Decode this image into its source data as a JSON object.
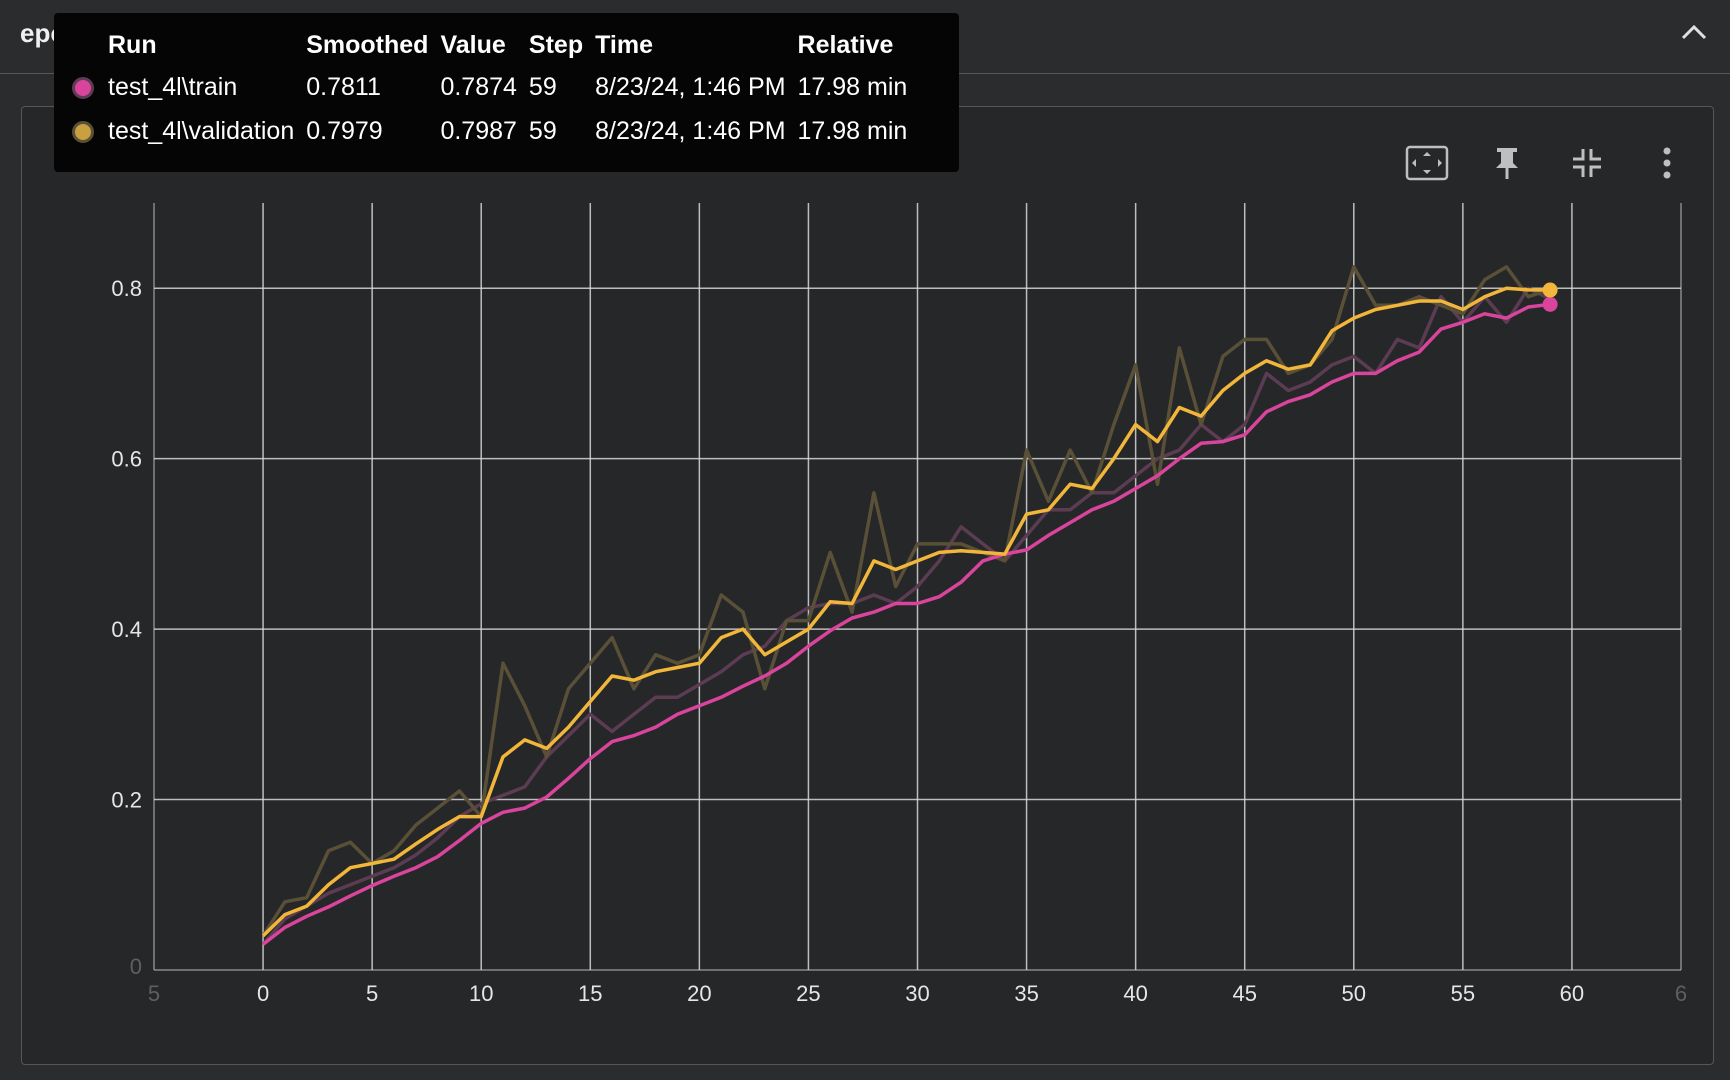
{
  "header": {
    "title": "epoch_accuracy"
  },
  "card": {
    "title": "epoch_accuracy"
  },
  "colors": {
    "train": "#d9449c",
    "train_raw": "#5c3c52",
    "validation": "#f2b63a",
    "validation_raw": "#5a5038",
    "grid": "#d8d8d8"
  },
  "icons": {
    "collapse": "chevron-up-icon",
    "fit": "fit-domain-icon",
    "pin": "pin-icon",
    "minimize": "collapse-arrows-icon",
    "menu": "more-vert-icon"
  },
  "tooltip": {
    "headers": {
      "run": "Run",
      "smoothed": "Smoothed",
      "value": "Value",
      "step": "Step",
      "time": "Time",
      "relative": "Relative"
    },
    "rows": [
      {
        "run": "test_4l\\train",
        "smoothed": "0.7811",
        "value": "0.7874",
        "step": "59",
        "time": "8/23/24, 1:46 PM",
        "relative": "17.98 min",
        "color": "#d9449c",
        "border": "#5c3c52"
      },
      {
        "run": "test_4l\\validation",
        "smoothed": "0.7979",
        "value": "0.7987",
        "step": "59",
        "time": "8/23/24, 1:46 PM",
        "relative": "17.98 min",
        "color": "#c9a040",
        "border": "#5a5038"
      }
    ]
  },
  "chart_data": {
    "type": "line",
    "title": "epoch_accuracy",
    "xlabel": "",
    "ylabel": "",
    "xlim": [
      -5,
      65
    ],
    "ylim": [
      0,
      0.9
    ],
    "x_ticks": [
      "0",
      "5",
      "10",
      "15",
      "20",
      "25",
      "30",
      "35",
      "40",
      "45",
      "50",
      "55",
      "60"
    ],
    "x_edge_ticks": [
      "5",
      "6"
    ],
    "y_ticks": [
      "0.2",
      "0.4",
      "0.6",
      "0.8"
    ],
    "y_edge_tick": "0",
    "grid": true,
    "series": [
      {
        "name": "test_4l\\train",
        "raw": [
          0.03,
          0.06,
          0.075,
          0.09,
          0.1,
          0.11,
          0.12,
          0.135,
          0.155,
          0.18,
          0.195,
          0.205,
          0.215,
          0.25,
          0.275,
          0.3,
          0.28,
          0.3,
          0.32,
          0.32,
          0.335,
          0.35,
          0.37,
          0.38,
          0.41,
          0.425,
          0.43,
          0.43,
          0.44,
          0.43,
          0.45,
          0.48,
          0.52,
          0.5,
          0.48,
          0.51,
          0.54,
          0.54,
          0.56,
          0.56,
          0.58,
          0.6,
          0.61,
          0.64,
          0.62,
          0.64,
          0.7,
          0.68,
          0.69,
          0.71,
          0.72,
          0.7,
          0.74,
          0.73,
          0.79,
          0.76,
          0.79,
          0.76,
          0.8,
          0.7874
        ],
        "smoothed": [
          0.03,
          0.05,
          0.063,
          0.074,
          0.087,
          0.099,
          0.11,
          0.12,
          0.133,
          0.152,
          0.172,
          0.185,
          0.19,
          0.203,
          0.225,
          0.248,
          0.268,
          0.275,
          0.285,
          0.3,
          0.31,
          0.32,
          0.333,
          0.345,
          0.36,
          0.38,
          0.398,
          0.413,
          0.42,
          0.43,
          0.43,
          0.438,
          0.455,
          0.48,
          0.488,
          0.493,
          0.51,
          0.525,
          0.54,
          0.55,
          0.565,
          0.58,
          0.6,
          0.618,
          0.62,
          0.628,
          0.655,
          0.667,
          0.675,
          0.69,
          0.7,
          0.7,
          0.715,
          0.725,
          0.752,
          0.76,
          0.77,
          0.765,
          0.778,
          0.7811
        ]
      },
      {
        "name": "test_4l\\validation",
        "raw": [
          0.04,
          0.08,
          0.085,
          0.14,
          0.15,
          0.125,
          0.14,
          0.17,
          0.19,
          0.21,
          0.18,
          0.36,
          0.31,
          0.25,
          0.33,
          0.36,
          0.39,
          0.33,
          0.37,
          0.36,
          0.37,
          0.44,
          0.42,
          0.33,
          0.41,
          0.41,
          0.49,
          0.42,
          0.56,
          0.45,
          0.5,
          0.5,
          0.5,
          0.49,
          0.48,
          0.61,
          0.55,
          0.61,
          0.56,
          0.64,
          0.71,
          0.57,
          0.73,
          0.64,
          0.72,
          0.74,
          0.74,
          0.7,
          0.71,
          0.74,
          0.825,
          0.78,
          0.78,
          0.79,
          0.78,
          0.77,
          0.81,
          0.825,
          0.79,
          0.7987
        ],
        "smoothed": [
          0.04,
          0.065,
          0.075,
          0.1,
          0.12,
          0.125,
          0.13,
          0.148,
          0.165,
          0.18,
          0.18,
          0.25,
          0.27,
          0.26,
          0.285,
          0.315,
          0.345,
          0.34,
          0.35,
          0.355,
          0.36,
          0.39,
          0.4,
          0.37,
          0.385,
          0.4,
          0.432,
          0.43,
          0.48,
          0.47,
          0.48,
          0.49,
          0.492,
          0.49,
          0.488,
          0.535,
          0.54,
          0.57,
          0.565,
          0.6,
          0.64,
          0.62,
          0.66,
          0.65,
          0.68,
          0.7,
          0.715,
          0.705,
          0.71,
          0.75,
          0.765,
          0.775,
          0.78,
          0.785,
          0.785,
          0.775,
          0.79,
          0.8,
          0.798,
          0.7979
        ]
      }
    ]
  }
}
